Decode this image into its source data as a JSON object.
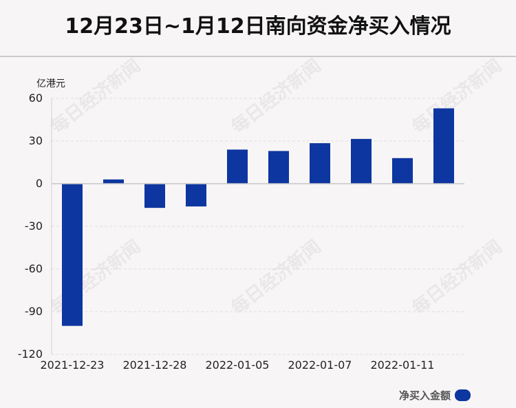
{
  "title": "12月23日~1月12日南向资金净买入情况",
  "watermark": "每日经济新闻",
  "chart_data": {
    "type": "bar",
    "y_unit": "亿港元",
    "ylim": [
      -120,
      60
    ],
    "yticks": [
      60,
      30,
      0,
      -30,
      -60,
      -90,
      -120
    ],
    "x_tick_labels": [
      "2021-12-23",
      "2021-12-28",
      "2022-01-05",
      "2022-01-07",
      "2022-01-11"
    ],
    "series": [
      {
        "name": "净买入金额",
        "color": "#0d36a0",
        "values": [
          -100,
          3,
          -17,
          -16,
          24,
          23,
          28.5,
          31.5,
          18,
          53
        ]
      }
    ],
    "grid": true,
    "legend_position": "bottom-right"
  }
}
